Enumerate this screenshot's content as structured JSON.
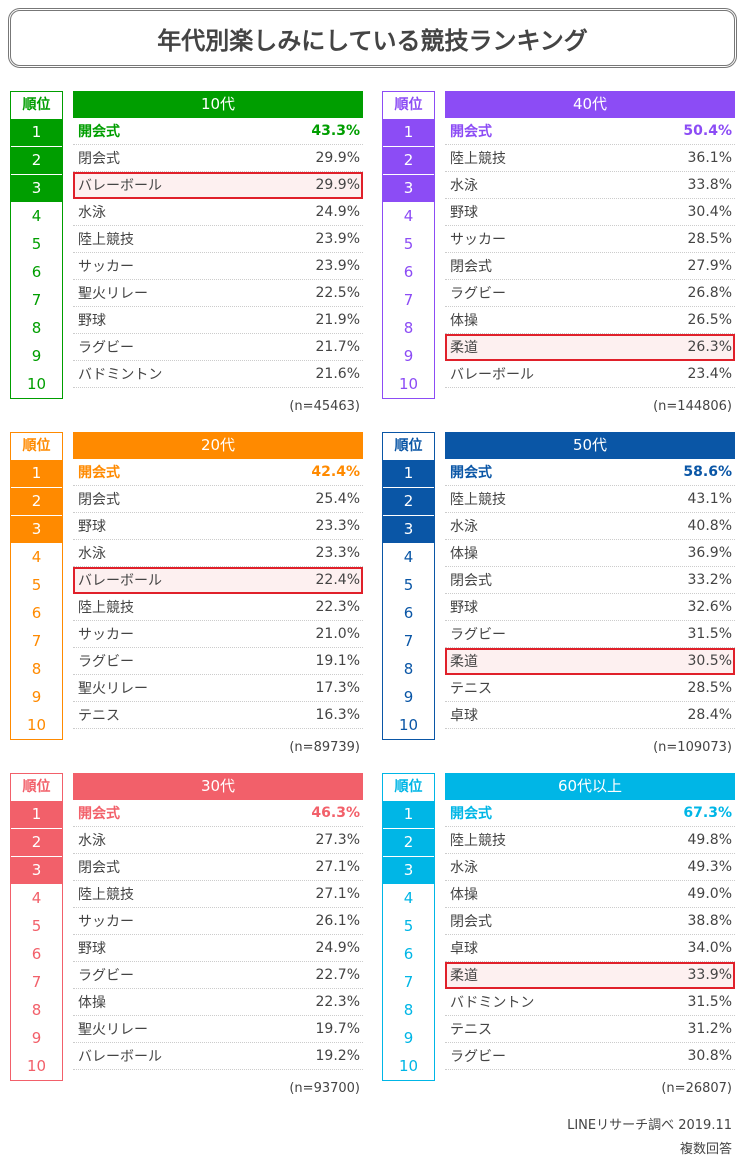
{
  "title": "年代別楽しみにしている競技ランキング",
  "rank_header": "順位",
  "panels": [
    {
      "age": "10代",
      "color": "#009e00",
      "n": "(n=45463)",
      "highlight": 3,
      "items": [
        [
          "開会式",
          "43.3%"
        ],
        [
          "閉会式",
          "29.9%"
        ],
        [
          "バレーボール",
          "29.9%"
        ],
        [
          "水泳",
          "24.9%"
        ],
        [
          "陸上競技",
          "23.9%"
        ],
        [
          "サッカー",
          "23.9%"
        ],
        [
          "聖火リレー",
          "22.5%"
        ],
        [
          "野球",
          "21.9%"
        ],
        [
          "ラグビー",
          "21.7%"
        ],
        [
          "バドミントン",
          "21.6%"
        ]
      ]
    },
    {
      "age": "40代",
      "color": "#8c4cf5",
      "n": "(n=144806)",
      "highlight": 9,
      "items": [
        [
          "開会式",
          "50.4%"
        ],
        [
          "陸上競技",
          "36.1%"
        ],
        [
          "水泳",
          "33.8%"
        ],
        [
          "野球",
          "30.4%"
        ],
        [
          "サッカー",
          "28.5%"
        ],
        [
          "閉会式",
          "27.9%"
        ],
        [
          "ラグビー",
          "26.8%"
        ],
        [
          "体操",
          "26.5%"
        ],
        [
          "柔道",
          "26.3%"
        ],
        [
          "バレーボール",
          "23.4%"
        ]
      ]
    },
    {
      "age": "20代",
      "color": "#ff8a00",
      "n": "(n=89739)",
      "highlight": 5,
      "items": [
        [
          "開会式",
          "42.4%"
        ],
        [
          "閉会式",
          "25.4%"
        ],
        [
          "野球",
          "23.3%"
        ],
        [
          "水泳",
          "23.3%"
        ],
        [
          "バレーボール",
          "22.4%"
        ],
        [
          "陸上競技",
          "22.3%"
        ],
        [
          "サッカー",
          "21.0%"
        ],
        [
          "ラグビー",
          "19.1%"
        ],
        [
          "聖火リレー",
          "17.3%"
        ],
        [
          "テニス",
          "16.3%"
        ]
      ]
    },
    {
      "age": "50代",
      "color": "#0a56a6",
      "n": "(n=109073)",
      "highlight": 8,
      "items": [
        [
          "開会式",
          "58.6%"
        ],
        [
          "陸上競技",
          "43.1%"
        ],
        [
          "水泳",
          "40.8%"
        ],
        [
          "体操",
          "36.9%"
        ],
        [
          "閉会式",
          "33.2%"
        ],
        [
          "野球",
          "32.6%"
        ],
        [
          "ラグビー",
          "31.5%"
        ],
        [
          "柔道",
          "30.5%"
        ],
        [
          "テニス",
          "28.5%"
        ],
        [
          "卓球",
          "28.4%"
        ]
      ]
    },
    {
      "age": "30代",
      "color": "#f2606a",
      "n": "(n=93700)",
      "highlight": 0,
      "items": [
        [
          "開会式",
          "46.3%"
        ],
        [
          "水泳",
          "27.3%"
        ],
        [
          "閉会式",
          "27.1%"
        ],
        [
          "陸上競技",
          "27.1%"
        ],
        [
          "サッカー",
          "26.1%"
        ],
        [
          "野球",
          "24.9%"
        ],
        [
          "ラグビー",
          "22.7%"
        ],
        [
          "体操",
          "22.3%"
        ],
        [
          "聖火リレー",
          "19.7%"
        ],
        [
          "バレーボール",
          "19.2%"
        ]
      ]
    },
    {
      "age": "60代以上",
      "color": "#00b6e6",
      "n": "(n=26807)",
      "highlight": 7,
      "items": [
        [
          "開会式",
          "67.3%"
        ],
        [
          "陸上競技",
          "49.8%"
        ],
        [
          "水泳",
          "49.3%"
        ],
        [
          "体操",
          "49.0%"
        ],
        [
          "閉会式",
          "38.8%"
        ],
        [
          "卓球",
          "34.0%"
        ],
        [
          "柔道",
          "33.9%"
        ],
        [
          "バドミントン",
          "31.5%"
        ],
        [
          "テニス",
          "31.2%"
        ],
        [
          "ラグビー",
          "30.8%"
        ]
      ]
    }
  ],
  "footer": {
    "source": "LINEリサーチ調べ 2019.11",
    "note": "複数回答"
  }
}
